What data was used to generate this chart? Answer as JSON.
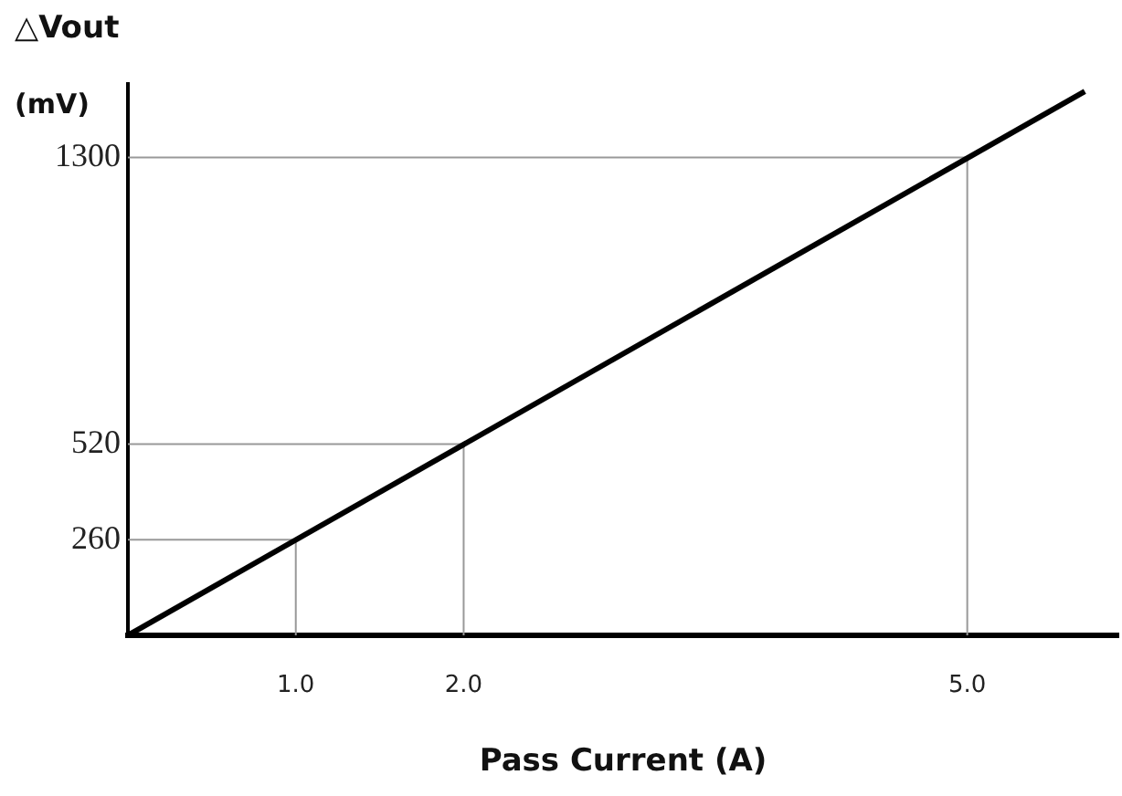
{
  "chart_data": {
    "type": "line",
    "xlabel": "Pass Current (A)",
    "ylabel": "△Vout",
    "annotations": [
      "(mV)"
    ],
    "xlim": [
      0,
      5.9
    ],
    "ylim": [
      0,
      1500
    ],
    "xticks": [
      {
        "value": 1,
        "label": "1.0"
      },
      {
        "value": 2,
        "label": "2.0"
      },
      {
        "value": 5,
        "label": "5.0"
      }
    ],
    "yticks": [
      260,
      520,
      1300
    ],
    "grid": false,
    "legend": false,
    "marker": "none",
    "line_style": "solid",
    "series": [
      {
        "color": "#000000",
        "x": [
          0,
          5.7
        ],
        "values": [
          0,
          1480
        ]
      },
      {
        "color": "#999999",
        "x": [
          0,
          1,
          1
        ],
        "values": [
          260,
          260,
          0
        ]
      },
      {
        "color": "#999999",
        "x": [
          0,
          2,
          2
        ],
        "values": [
          520,
          520,
          0
        ]
      },
      {
        "color": "#999999",
        "x": [
          0,
          5,
          5
        ],
        "values": [
          1300,
          1300,
          0
        ]
      }
    ]
  }
}
